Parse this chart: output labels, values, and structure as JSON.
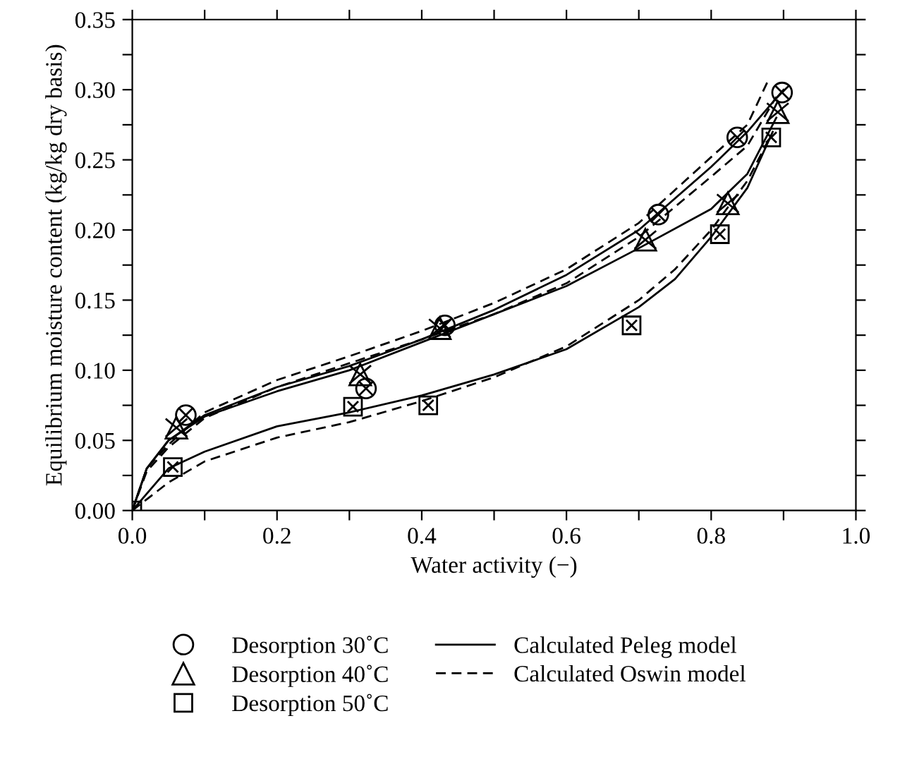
{
  "chart_data": {
    "type": "scatter",
    "xlabel": "Water activity (−)",
    "ylabel": "Equilibrium moisture content (kg/kg dry basis)",
    "xlim": [
      0,
      1
    ],
    "ylim": [
      0,
      0.35
    ],
    "xticks": [
      {
        "value": 0,
        "label": "0.0"
      },
      {
        "value": 0.1,
        "label": null
      },
      {
        "value": 0.2,
        "label": "0.2"
      },
      {
        "value": 0.3,
        "label": null
      },
      {
        "value": 0.4,
        "label": "0.4"
      },
      {
        "value": 0.5,
        "label": null
      },
      {
        "value": 0.6,
        "label": "0.6"
      },
      {
        "value": 0.7,
        "label": null
      },
      {
        "value": 0.8,
        "label": "0.8"
      },
      {
        "value": 0.9,
        "label": null
      },
      {
        "value": 1,
        "label": "1.0"
      }
    ],
    "yticks": [
      {
        "value": 0,
        "label": "0.00"
      },
      {
        "value": 0.025,
        "label": null
      },
      {
        "value": 0.05,
        "label": "0.05"
      },
      {
        "value": 0.075,
        "label": null
      },
      {
        "value": 0.1,
        "label": "0.10"
      },
      {
        "value": 0.125,
        "label": null
      },
      {
        "value": 0.15,
        "label": "0.15"
      },
      {
        "value": 0.175,
        "label": null
      },
      {
        "value": 0.2,
        "label": "0.20"
      },
      {
        "value": 0.225,
        "label": null
      },
      {
        "value": 0.25,
        "label": "0.25"
      },
      {
        "value": 0.275,
        "label": null
      },
      {
        "value": 0.3,
        "label": "0.30"
      },
      {
        "value": 0.325,
        "label": null
      },
      {
        "value": 0.35,
        "label": "0.35"
      }
    ],
    "grid": false,
    "legend": "bottom",
    "series": [
      {
        "name": "Desorption 30˚C",
        "marker": "circle",
        "color": "#000000",
        "x": [
          0.074,
          0.323,
          0.432,
          0.727,
          0.836,
          0.898
        ],
        "values": [
          0.068,
          0.087,
          0.132,
          0.211,
          0.266,
          0.298
        ]
      },
      {
        "name": "Desorption 40˚C",
        "marker": "triangle",
        "color": "#000000",
        "x": [
          0.061,
          0.315,
          0.425,
          0.709,
          0.823,
          0.892
        ],
        "values": [
          0.059,
          0.097,
          0.13,
          0.193,
          0.219,
          0.284
        ]
      },
      {
        "name": "Desorption 50˚C",
        "marker": "square",
        "color": "#000000",
        "x": [
          0,
          0.056,
          0.305,
          0.409,
          0.69,
          0.812,
          0.883
        ],
        "values": [
          0,
          0.031,
          0.074,
          0.075,
          0.132,
          0.197,
          0.266
        ]
      },
      {
        "name": "Calculated Peleg model",
        "type": "line",
        "line_style": "solid",
        "color": "#000000",
        "x": [
          0,
          0.02,
          0.05,
          0.1,
          0.2,
          0.3,
          0.4,
          0.5,
          0.6,
          0.7,
          0.8,
          0.85,
          0.9
        ],
        "values": [
          0,
          0.03,
          0.05,
          0.068,
          0.088,
          0.103,
          0.122,
          0.143,
          0.168,
          0.2,
          0.245,
          0.27,
          0.3
        ]
      },
      {
        "type": "line",
        "line_style": "solid",
        "color": "#000000",
        "x": [
          0,
          0.02,
          0.05,
          0.1,
          0.2,
          0.3,
          0.4,
          0.5,
          0.6,
          0.7,
          0.8,
          0.85,
          0.89
        ],
        "values": [
          0,
          0.03,
          0.05,
          0.067,
          0.085,
          0.1,
          0.12,
          0.14,
          0.16,
          0.187,
          0.215,
          0.24,
          0.28
        ]
      },
      {
        "type": "line",
        "line_style": "solid",
        "color": "#000000",
        "x": [
          0,
          0.05,
          0.1,
          0.2,
          0.3,
          0.4,
          0.5,
          0.6,
          0.7,
          0.75,
          0.8,
          0.85,
          0.885
        ],
        "values": [
          0,
          0.03,
          0.042,
          0.06,
          0.07,
          0.082,
          0.097,
          0.115,
          0.145,
          0.165,
          0.195,
          0.23,
          0.27
        ]
      },
      {
        "name": "Calculated Oswin model",
        "type": "line",
        "line_style": "dashed",
        "color": "#000000",
        "x": [
          0,
          0.02,
          0.05,
          0.1,
          0.2,
          0.3,
          0.4,
          0.5,
          0.6,
          0.7,
          0.8,
          0.85,
          0.88
        ],
        "values": [
          0,
          0.03,
          0.047,
          0.07,
          0.093,
          0.11,
          0.128,
          0.148,
          0.172,
          0.205,
          0.252,
          0.275,
          0.308
        ]
      },
      {
        "type": "line",
        "line_style": "dashed",
        "color": "#000000",
        "x": [
          0,
          0.02,
          0.05,
          0.1,
          0.2,
          0.3,
          0.4,
          0.5,
          0.6,
          0.7,
          0.8,
          0.85,
          0.89
        ],
        "values": [
          0,
          0.028,
          0.045,
          0.066,
          0.088,
          0.105,
          0.122,
          0.14,
          0.162,
          0.195,
          0.238,
          0.26,
          0.295
        ]
      },
      {
        "type": "line",
        "line_style": "dashed",
        "color": "#000000",
        "x": [
          0,
          0.05,
          0.1,
          0.2,
          0.3,
          0.4,
          0.5,
          0.6,
          0.7,
          0.75,
          0.8,
          0.85,
          0.88
        ],
        "values": [
          0,
          0.02,
          0.035,
          0.052,
          0.063,
          0.078,
          0.095,
          0.117,
          0.15,
          0.172,
          0.2,
          0.235,
          0.265
        ]
      }
    ]
  }
}
